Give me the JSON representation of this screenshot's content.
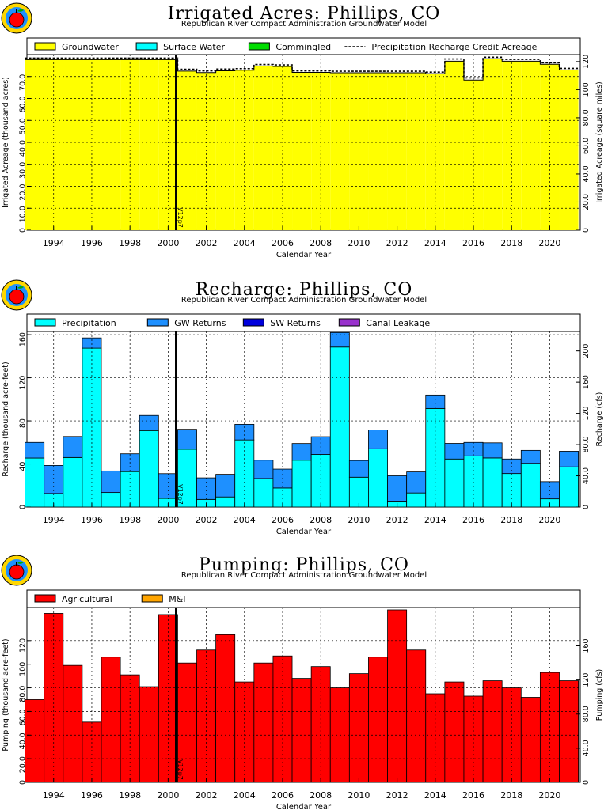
{
  "chart_data": [
    {
      "type": "area",
      "title": "Irrigated Acres: Phillips, CO",
      "subtitle": "Republican River Compact Administration Groundwater Model",
      "xlabel": "Calendar Year",
      "ylabel": "Irrigated Acreage (thousand acres)",
      "y2label": "Irrigated Acreage (square miles)",
      "xlim": [
        1992.6,
        2021.6
      ],
      "ylim": [
        0,
        80
      ],
      "y2lim": [
        0,
        125
      ],
      "x_ticks": [
        "1994",
        "1996",
        "1998",
        "2000",
        "2002",
        "2004",
        "2006",
        "2008",
        "2010",
        "2012",
        "2014",
        "2016",
        "2018",
        "2020"
      ],
      "y_ticks": [
        "0",
        "10.0",
        "20.0",
        "30.0",
        "40.0",
        "50.0",
        "60.0",
        "70.0"
      ],
      "y2_ticks": [
        "0",
        "20.0",
        "40.0",
        "60.0",
        "80.0",
        "100",
        "120"
      ],
      "legend": [
        "Groundwater",
        "Surface Water",
        "Commingled",
        "Precipitation Recharge Credit Acreage"
      ],
      "legend_placement": "top",
      "grid": true,
      "marker_label": "V12p7",
      "marker_x": 2000.4,
      "years": [
        1993,
        1994,
        1995,
        1996,
        1997,
        1998,
        1999,
        2000,
        2001,
        2002,
        2003,
        2004,
        2005,
        2006,
        2007,
        2008,
        2009,
        2010,
        2011,
        2012,
        2013,
        2014,
        2015,
        2016,
        2017,
        2018,
        2019,
        2020,
        2021
      ],
      "series": [
        {
          "name": "Groundwater",
          "color": "#ffff00",
          "values": [
            77.7,
            77.7,
            77.7,
            77.7,
            77.7,
            77.7,
            77.7,
            77.7,
            72.5,
            71.8,
            72.6,
            72.9,
            74.8,
            74.6,
            71.9,
            71.9,
            71.7,
            71.7,
            71.7,
            71.7,
            71.7,
            71.3,
            77.0,
            68.4,
            78.1,
            77.0,
            77.0,
            75.6,
            73.0
          ]
        },
        {
          "name": "Surface Water",
          "color": "#00ffff",
          "values": [
            0,
            0,
            0,
            0,
            0,
            0,
            0,
            0,
            0,
            0,
            0,
            0,
            0,
            0,
            0,
            0,
            0,
            0,
            0,
            0,
            0,
            0,
            0,
            0,
            0,
            0,
            0,
            0,
            0
          ]
        },
        {
          "name": "Commingled",
          "color": "#00dd00",
          "values": [
            0,
            0,
            0,
            0,
            0,
            0,
            0,
            0,
            0,
            0,
            0,
            0,
            0,
            0,
            0,
            0,
            0,
            0,
            0,
            0,
            0,
            0,
            0,
            0,
            0,
            0,
            0,
            0,
            0
          ]
        }
      ],
      "line_series": {
        "name": "Precipitation Recharge Credit Acreage",
        "values": [
          78.4,
          78.4,
          78.4,
          78.4,
          78.4,
          78.4,
          78.4,
          78.4,
          73.3,
          72.6,
          73.4,
          73.6,
          75.5,
          75.3,
          72.6,
          72.6,
          72.4,
          72.4,
          72.4,
          72.4,
          72.4,
          72.0,
          78.0,
          69.4,
          78.8,
          77.8,
          77.8,
          76.3,
          73.7
        ]
      }
    },
    {
      "type": "bar",
      "title": "Recharge: Phillips, CO",
      "subtitle": "Republican River Compact Administration Groundwater Model",
      "xlabel": "Calendar Year",
      "ylabel": "Recharge (thousand acre-feet)",
      "y2label": "Recharge (cfs)",
      "xlim": [
        1992.6,
        2021.6
      ],
      "ylim": [
        0,
        163
      ],
      "y2lim": [
        0,
        225
      ],
      "x_ticks": [
        "1994",
        "1996",
        "1998",
        "2000",
        "2002",
        "2004",
        "2006",
        "2008",
        "2010",
        "2012",
        "2014",
        "2016",
        "2018",
        "2020"
      ],
      "y_ticks": [
        "0",
        "40",
        "80",
        "120",
        "160"
      ],
      "y2_ticks": [
        "0",
        "40.0",
        "80.0",
        "120",
        "160",
        "200"
      ],
      "legend": [
        "Precipitation",
        "GW Returns",
        "SW Returns",
        "Canal Leakage"
      ],
      "legend_placement": "top",
      "grid": true,
      "marker_label": "V12p7",
      "marker_x": 2000.4,
      "years": [
        1993,
        1994,
        1995,
        1996,
        1997,
        1998,
        1999,
        2000,
        2001,
        2002,
        2003,
        2004,
        2005,
        2006,
        2007,
        2008,
        2009,
        2010,
        2011,
        2012,
        2013,
        2014,
        2015,
        2016,
        2017,
        2018,
        2019,
        2020,
        2021
      ],
      "series": [
        {
          "name": "Precipitation",
          "color": "#00ffff",
          "values": [
            45.5,
            12.6,
            46.0,
            147.5,
            13.5,
            32.9,
            71.0,
            8.0,
            53.7,
            7.1,
            9.4,
            62.3,
            26.5,
            17.7,
            43.5,
            48.8,
            148.5,
            27.7,
            54.1,
            5.5,
            13.1,
            91.5,
            44.6,
            47.5,
            45.6,
            31.1,
            40.6,
            7.6,
            37.3
          ]
        },
        {
          "name": "GW Returns",
          "color": "#1e90ff",
          "values": [
            14.5,
            26.0,
            19.5,
            9.5,
            20.0,
            16.5,
            14.0,
            23.0,
            18.5,
            20.0,
            21.0,
            14.5,
            17.0,
            17.5,
            15.5,
            16.5,
            13.5,
            15.5,
            17.5,
            23.5,
            19.5,
            12.5,
            14.5,
            12.5,
            14.0,
            13.5,
            12.0,
            16.0,
            14.5
          ]
        },
        {
          "name": "SW Returns",
          "color": "#0000dd",
          "values": [
            0,
            0,
            0,
            0,
            0,
            0,
            0,
            0,
            0,
            0,
            0,
            0,
            0,
            0,
            0,
            0,
            0,
            0,
            0,
            0,
            0,
            0,
            0,
            0,
            0,
            0,
            0,
            0,
            0
          ]
        },
        {
          "name": "Canal Leakage",
          "color": "#9932cc",
          "values": [
            0,
            0,
            0,
            0,
            0,
            0,
            0,
            0,
            0,
            0,
            0,
            0,
            0,
            0,
            0,
            0,
            0,
            0,
            0,
            0,
            0,
            0,
            0,
            0,
            0,
            0,
            0,
            0,
            0
          ]
        }
      ]
    },
    {
      "type": "bar",
      "title": "Pumping: Phillips, CO",
      "subtitle": "Republican River Compact Administration Groundwater Model",
      "xlabel": "Calendar Year",
      "ylabel": "Pumping (thousand acre-feet)",
      "y2label": "Pumping (cfs)",
      "xlim": [
        1992.6,
        2021.6
      ],
      "ylim": [
        0,
        148
      ],
      "y2lim": [
        0,
        205
      ],
      "x_ticks": [
        "1994",
        "1996",
        "1998",
        "2000",
        "2002",
        "2004",
        "2006",
        "2008",
        "2010",
        "2012",
        "2014",
        "2016",
        "2018",
        "2020"
      ],
      "y_ticks": [
        "0",
        "20.0",
        "40.0",
        "60.0",
        "80.0",
        "100",
        "120"
      ],
      "y2_ticks": [
        "0",
        "40.0",
        "80.0",
        "120",
        "160"
      ],
      "legend": [
        "Agricultural",
        "M&I"
      ],
      "legend_placement": "top",
      "grid": true,
      "marker_label": "V12p7",
      "marker_x": 2000.4,
      "years": [
        1993,
        1994,
        1995,
        1996,
        1997,
        1998,
        1999,
        2000,
        2001,
        2002,
        2003,
        2004,
        2005,
        2006,
        2007,
        2008,
        2009,
        2010,
        2011,
        2012,
        2013,
        2014,
        2015,
        2016,
        2017,
        2018,
        2019,
        2020,
        2021
      ],
      "series": [
        {
          "name": "Agricultural",
          "color": "#ff0000",
          "values": [
            70.0,
            143.0,
            99.0,
            51.0,
            106.0,
            91.0,
            81.0,
            142.0,
            101.0,
            112.0,
            125.0,
            85.0,
            101.0,
            107.0,
            88.0,
            98.0,
            80.0,
            92.0,
            106.0,
            146.0,
            112.0,
            75.0,
            85.0,
            73.0,
            86.0,
            80.0,
            72.0,
            93.0,
            86.0
          ]
        },
        {
          "name": "M&I",
          "color": "#ffa500",
          "values": [
            0,
            0,
            0,
            0,
            0,
            0,
            0,
            0,
            0,
            0,
            0,
            0,
            0,
            0,
            0,
            0,
            0,
            0,
            0,
            0,
            0,
            0,
            0,
            0,
            0,
            0,
            0,
            0,
            0
          ]
        }
      ]
    }
  ]
}
